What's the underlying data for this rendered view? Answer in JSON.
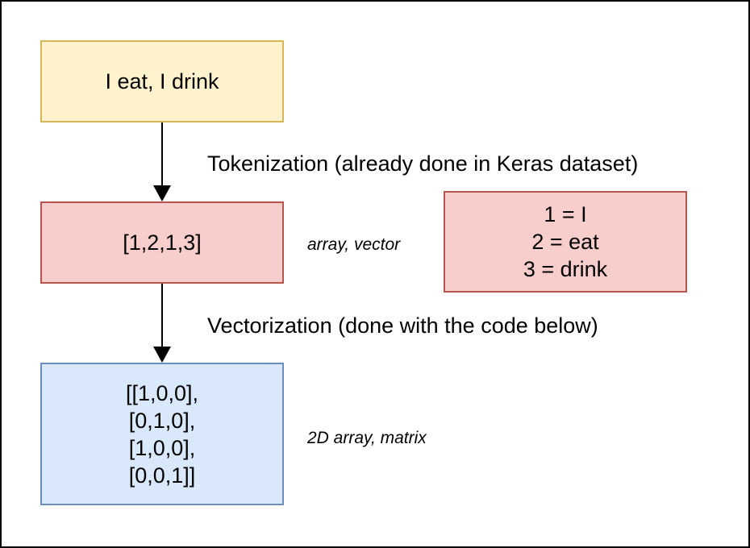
{
  "diagram": {
    "input_box": {
      "text": "I eat, I drink"
    },
    "tokenization_label": "Tokenization (already done in Keras dataset)",
    "token_box": {
      "text": "[1,2,1,3]"
    },
    "token_note": "array, vector",
    "vocab_box": {
      "lines": [
        "1 = I",
        "2 = eat",
        "3 = drink"
      ]
    },
    "vectorization_label": "Vectorization (done with the code below)",
    "matrix_box": {
      "lines": [
        "[[1,0,0],",
        "[0,1,0],",
        "[1,0,0],",
        "[0,0,1]]"
      ]
    },
    "matrix_note": "2D array, matrix",
    "colors": {
      "input_fill": "#fff2cc",
      "input_stroke": "#d6b656",
      "token_fill": "#f8cecc",
      "token_stroke": "#b85450",
      "matrix_fill": "#dae8fc",
      "matrix_stroke": "#6c8ebf"
    }
  }
}
